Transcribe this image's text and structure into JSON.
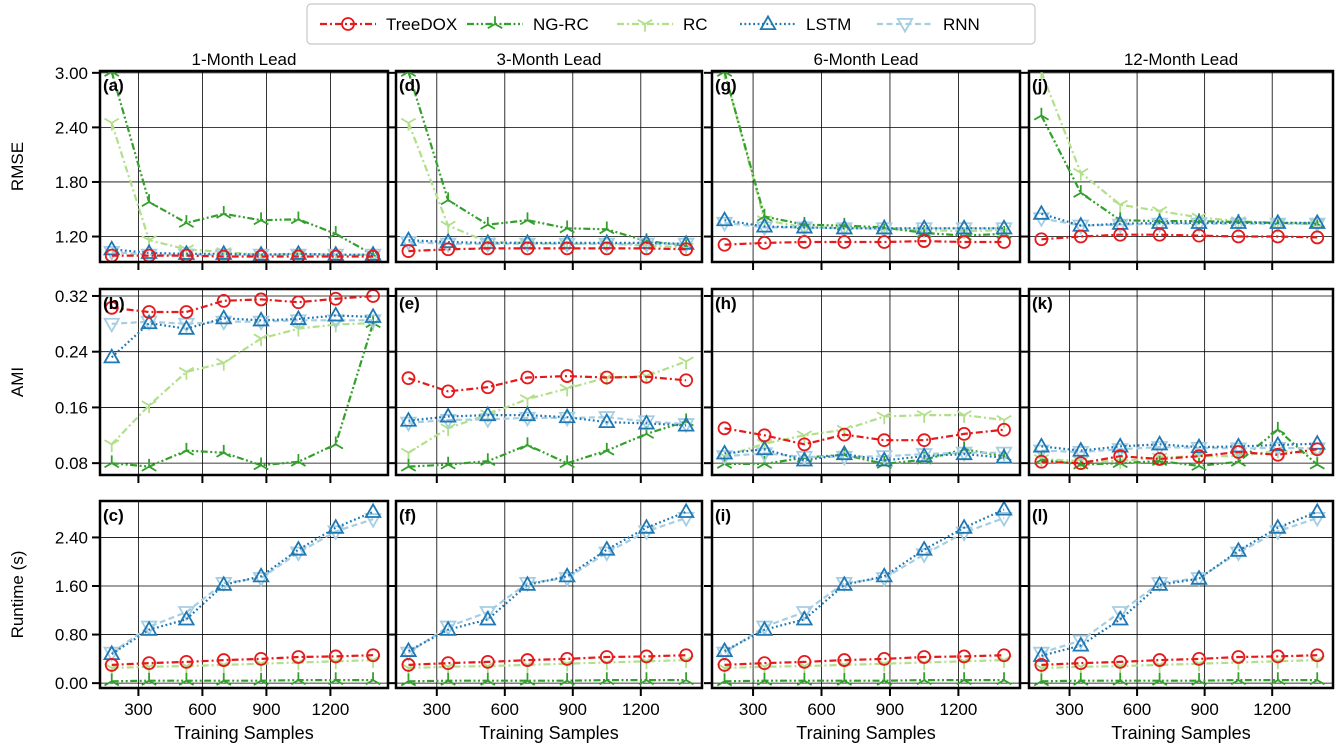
{
  "legend": [
    {
      "key": "treedox",
      "label": "TreeDOX",
      "color": "#e41a1c",
      "marker": "circle",
      "dash": "dashdot"
    },
    {
      "key": "ngrc",
      "label": "NG-RC",
      "color": "#33a02c",
      "marker": "tri_down",
      "dash": "dashdotdot"
    },
    {
      "key": "rc",
      "label": "RC",
      "color": "#b2df8a",
      "marker": "tri_up_line",
      "dash": "dashdot"
    },
    {
      "key": "lstm",
      "label": "LSTM",
      "color": "#1f78b4",
      "marker": "triangle",
      "dash": "dotted"
    },
    {
      "key": "rnn",
      "label": "RNN",
      "color": "#a6cee3",
      "marker": "triangle_down",
      "dash": "dashed"
    }
  ],
  "chart_data": {
    "type": "line",
    "xlabel": "Training Samples",
    "x": [
      175,
      350,
      525,
      700,
      875,
      1050,
      1225,
      1400
    ],
    "xlim": [
      120,
      1470
    ],
    "xticks": [
      300,
      600,
      900,
      1200
    ],
    "columns": [
      "1-Month Lead",
      "3-Month Lead",
      "6-Month Lead",
      "12-Month Lead"
    ],
    "rows": [
      {
        "ylabel": "RMSE",
        "ylim": [
          0.92,
          3.02
        ],
        "yticks": [
          1.2,
          1.8,
          2.4,
          3.0
        ],
        "ytick_labels": [
          "1.20",
          "1.80",
          "2.40",
          "3.00"
        ]
      },
      {
        "ylabel": "AMI",
        "ylim": [
          0.063,
          0.33
        ],
        "yticks": [
          0.08,
          0.16,
          0.24,
          0.32
        ],
        "ytick_labels": [
          "0.08",
          "0.16",
          "0.24",
          "0.32"
        ]
      },
      {
        "ylabel": "Runtime (s)",
        "ylim": [
          -0.08,
          3.0
        ],
        "yticks": [
          0.0,
          0.8,
          1.6,
          2.4
        ],
        "ytick_labels": [
          "0.00",
          "0.80",
          "1.60",
          "2.40"
        ]
      }
    ],
    "panels": [
      {
        "label": "(a)",
        "row": 0,
        "col": 0,
        "series": {
          "treedox": [
            0.99,
            0.99,
            0.99,
            0.98,
            0.98,
            0.98,
            0.98,
            0.98
          ],
          "ngrc": [
            3.01,
            1.58,
            1.35,
            1.45,
            1.38,
            1.39,
            1.23,
            1.0
          ],
          "rc": [
            2.45,
            1.16,
            1.06,
            1.03,
            1.0,
            1.01,
            1.0,
            1.0
          ],
          "lstm": [
            1.06,
            1.02,
            1.01,
            1.01,
            1.0,
            1.01,
            1.0,
            1.0
          ],
          "rnn": [
            1.03,
            1.0,
            1.0,
            1.0,
            1.0,
            1.0,
            1.0,
            1.0
          ]
        }
      },
      {
        "label": "(d)",
        "row": 0,
        "col": 1,
        "series": {
          "treedox": [
            1.04,
            1.06,
            1.07,
            1.07,
            1.07,
            1.07,
            1.07,
            1.06
          ],
          "ngrc": [
            3.01,
            1.6,
            1.33,
            1.38,
            1.29,
            1.28,
            1.15,
            1.1
          ],
          "rc": [
            2.45,
            1.32,
            1.14,
            1.13,
            1.12,
            1.12,
            1.1,
            1.08
          ],
          "lstm": [
            1.16,
            1.14,
            1.13,
            1.13,
            1.13,
            1.13,
            1.13,
            1.12
          ],
          "rnn": [
            1.14,
            1.12,
            1.12,
            1.12,
            1.12,
            1.12,
            1.12,
            1.12
          ]
        }
      },
      {
        "label": "(g)",
        "row": 0,
        "col": 2,
        "series": {
          "treedox": [
            1.11,
            1.13,
            1.14,
            1.14,
            1.14,
            1.15,
            1.14,
            1.14
          ],
          "ngrc": [
            3.01,
            1.42,
            1.33,
            1.32,
            1.3,
            1.24,
            1.21,
            1.23
          ],
          "rc": [
            3.01,
            1.38,
            1.3,
            1.3,
            1.28,
            1.27,
            1.26,
            1.27
          ],
          "lstm": [
            1.38,
            1.31,
            1.3,
            1.29,
            1.29,
            1.29,
            1.29,
            1.29
          ],
          "rnn": [
            1.35,
            1.3,
            1.3,
            1.29,
            1.29,
            1.29,
            1.29,
            1.29
          ]
        }
      },
      {
        "label": "(j)",
        "row": 0,
        "col": 3,
        "series": {
          "treedox": [
            1.17,
            1.2,
            1.22,
            1.22,
            1.21,
            1.2,
            1.2,
            1.19
          ],
          "ngrc": [
            2.53,
            1.68,
            1.38,
            1.37,
            1.37,
            1.36,
            1.35,
            1.34
          ],
          "rc": [
            3.01,
            1.9,
            1.55,
            1.48,
            1.41,
            1.37,
            1.35,
            1.35
          ],
          "lstm": [
            1.45,
            1.32,
            1.34,
            1.35,
            1.35,
            1.35,
            1.35,
            1.35
          ],
          "rnn": [
            1.4,
            1.32,
            1.33,
            1.34,
            1.34,
            1.34,
            1.34,
            1.34
          ]
        }
      },
      {
        "label": "(b)",
        "row": 1,
        "col": 0,
        "series": {
          "treedox": [
            0.303,
            0.297,
            0.297,
            0.313,
            0.315,
            0.311,
            0.316,
            0.32
          ],
          "ngrc": [
            0.08,
            0.075,
            0.098,
            0.095,
            0.077,
            0.082,
            0.107,
            0.281
          ],
          "rc": [
            0.107,
            0.163,
            0.211,
            0.224,
            0.259,
            0.273,
            0.279,
            0.281
          ],
          "lstm": [
            0.232,
            0.281,
            0.273,
            0.288,
            0.285,
            0.287,
            0.292,
            0.29
          ],
          "rnn": [
            0.28,
            0.283,
            0.28,
            0.283,
            0.283,
            0.285,
            0.285,
            0.285
          ]
        }
      },
      {
        "label": "(e)",
        "row": 1,
        "col": 1,
        "series": {
          "treedox": [
            0.202,
            0.183,
            0.189,
            0.203,
            0.205,
            0.203,
            0.204,
            0.199
          ],
          "ngrc": [
            0.075,
            0.078,
            0.083,
            0.106,
            0.08,
            0.098,
            0.122,
            0.14
          ],
          "rc": [
            0.095,
            0.13,
            0.15,
            0.172,
            0.187,
            0.203,
            0.205,
            0.226
          ],
          "lstm": [
            0.141,
            0.147,
            0.149,
            0.149,
            0.146,
            0.139,
            0.137,
            0.134
          ],
          "rnn": [
            0.138,
            0.142,
            0.143,
            0.145,
            0.145,
            0.146,
            0.14,
            0.136
          ]
        }
      },
      {
        "label": "(h)",
        "row": 1,
        "col": 2,
        "series": {
          "treedox": [
            0.13,
            0.12,
            0.107,
            0.121,
            0.113,
            0.113,
            0.122,
            0.128
          ],
          "ngrc": [
            0.079,
            0.079,
            0.088,
            0.092,
            0.079,
            0.085,
            0.1,
            0.09
          ],
          "rc": [
            0.09,
            0.108,
            0.12,
            0.128,
            0.147,
            0.149,
            0.149,
            0.142
          ],
          "lstm": [
            0.094,
            0.1,
            0.084,
            0.093,
            0.084,
            0.09,
            0.093,
            0.088
          ],
          "rnn": [
            0.09,
            0.094,
            0.089,
            0.089,
            0.09,
            0.093,
            0.095,
            0.095
          ]
        }
      },
      {
        "label": "(k)",
        "row": 1,
        "col": 3,
        "series": {
          "treedox": [
            0.082,
            0.08,
            0.09,
            0.086,
            0.09,
            0.096,
            0.092,
            0.1
          ],
          "ngrc": [
            0.085,
            0.078,
            0.08,
            0.083,
            0.076,
            0.082,
            0.128,
            0.078
          ],
          "rc": [
            0.086,
            0.083,
            0.083,
            0.088,
            0.09,
            0.09,
            0.098,
            0.093
          ],
          "lstm": [
            0.104,
            0.098,
            0.104,
            0.107,
            0.103,
            0.104,
            0.106,
            0.108
          ],
          "rnn": [
            0.098,
            0.096,
            0.1,
            0.103,
            0.102,
            0.101,
            0.102,
            0.101
          ]
        }
      },
      {
        "label": "(c)",
        "row": 2,
        "col": 0,
        "series": {
          "treedox": [
            0.3,
            0.33,
            0.35,
            0.38,
            0.4,
            0.43,
            0.44,
            0.46
          ],
          "ngrc": [
            0.03,
            0.04,
            0.04,
            0.04,
            0.04,
            0.05,
            0.05,
            0.05
          ],
          "rc": [
            0.25,
            0.27,
            0.28,
            0.3,
            0.32,
            0.34,
            0.36,
            0.38
          ],
          "lstm": [
            0.48,
            0.88,
            1.05,
            1.62,
            1.76,
            2.2,
            2.56,
            2.82
          ],
          "rnn": [
            0.5,
            0.93,
            1.17,
            1.65,
            1.73,
            2.15,
            2.5,
            2.7
          ]
        }
      },
      {
        "label": "(f)",
        "row": 2,
        "col": 1,
        "series": {
          "treedox": [
            0.3,
            0.33,
            0.35,
            0.38,
            0.4,
            0.43,
            0.44,
            0.46
          ],
          "ngrc": [
            0.03,
            0.04,
            0.04,
            0.04,
            0.04,
            0.05,
            0.05,
            0.05
          ],
          "rc": [
            0.25,
            0.27,
            0.28,
            0.3,
            0.32,
            0.34,
            0.36,
            0.38
          ],
          "lstm": [
            0.53,
            0.88,
            1.05,
            1.62,
            1.76,
            2.2,
            2.56,
            2.82
          ],
          "rnn": [
            0.5,
            0.93,
            1.17,
            1.65,
            1.73,
            2.15,
            2.5,
            2.72
          ]
        }
      },
      {
        "label": "(i)",
        "row": 2,
        "col": 2,
        "series": {
          "treedox": [
            0.3,
            0.33,
            0.35,
            0.38,
            0.4,
            0.43,
            0.44,
            0.46
          ],
          "ngrc": [
            0.03,
            0.04,
            0.04,
            0.04,
            0.04,
            0.05,
            0.05,
            0.05
          ],
          "rc": [
            0.25,
            0.27,
            0.28,
            0.3,
            0.32,
            0.34,
            0.36,
            0.38
          ],
          "lstm": [
            0.53,
            0.88,
            1.05,
            1.62,
            1.76,
            2.2,
            2.56,
            2.86
          ],
          "rnn": [
            0.5,
            0.93,
            1.17,
            1.65,
            1.73,
            2.12,
            2.48,
            2.72
          ]
        }
      },
      {
        "label": "(l)",
        "row": 2,
        "col": 3,
        "series": {
          "treedox": [
            0.3,
            0.33,
            0.35,
            0.38,
            0.4,
            0.43,
            0.44,
            0.46
          ],
          "ngrc": [
            0.03,
            0.04,
            0.04,
            0.04,
            0.04,
            0.05,
            0.05,
            0.05
          ],
          "rc": [
            0.25,
            0.27,
            0.28,
            0.3,
            0.32,
            0.34,
            0.36,
            0.38
          ],
          "lstm": [
            0.45,
            0.62,
            1.05,
            1.62,
            1.72,
            2.18,
            2.56,
            2.82
          ],
          "rnn": [
            0.5,
            0.7,
            1.17,
            1.65,
            1.73,
            2.15,
            2.5,
            2.72
          ]
        }
      }
    ]
  }
}
